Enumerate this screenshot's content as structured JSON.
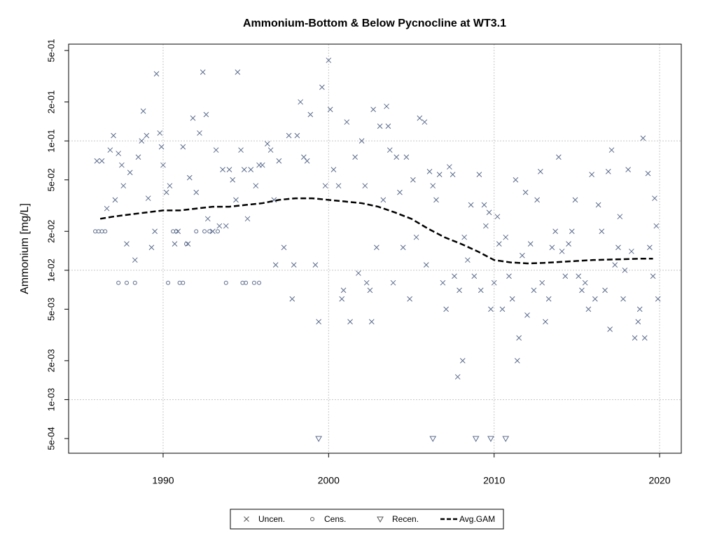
{
  "chart_data": {
    "type": "scatter",
    "title": "Ammonium-Bottom & Below Pycnocline at WT3.1",
    "y_label": "Ammonium [mg/L]",
    "log_y": true,
    "grid": true,
    "xlim": [
      1984.29,
      2021.31
    ],
    "ylim": [
      0.000385,
      0.56
    ],
    "xticks": [
      1990,
      2000,
      2010,
      2020
    ],
    "yticks": [
      {
        "value": 0.5,
        "label": "5e-01"
      },
      {
        "value": 0.2,
        "label": "2e-01"
      },
      {
        "value": 0.1,
        "label": "1e-01"
      },
      {
        "value": 0.05,
        "label": "5e-02"
      },
      {
        "value": 0.02,
        "label": "2e-02"
      },
      {
        "value": 0.01,
        "label": "1e-02"
      },
      {
        "value": 0.005,
        "label": "5e-03"
      },
      {
        "value": 0.002,
        "label": "2e-03"
      },
      {
        "value": 0.001,
        "label": "1e-03"
      },
      {
        "value": 0.0005,
        "label": "5e-04"
      }
    ],
    "legend": "bottom",
    "series": [
      {
        "name": "Uncen.",
        "marker": "x",
        "color": "#5b6b8c",
        "x": [
          1986.0,
          1986.3,
          1986.6,
          1986.8,
          1987.0,
          1987.1,
          1987.3,
          1987.5,
          1987.6,
          1987.8,
          1988.0,
          1988.3,
          1988.5,
          1988.7,
          1988.8,
          1989.0,
          1989.1,
          1989.3,
          1989.5,
          1989.6,
          1989.8,
          1989.9,
          1990.0,
          1990.2,
          1990.4,
          1990.7,
          1990.9,
          1991.2,
          1991.5,
          1991.6,
          1991.8,
          1992.0,
          1992.2,
          1992.4,
          1992.6,
          1992.7,
          1993.0,
          1993.2,
          1993.4,
          1993.6,
          1993.8,
          1994.0,
          1994.2,
          1994.4,
          1994.5,
          1994.7,
          1994.9,
          1995.1,
          1995.3,
          1995.6,
          1995.8,
          1996.0,
          1996.3,
          1996.5,
          1996.7,
          1996.8,
          1997.0,
          1997.3,
          1997.6,
          1997.8,
          1997.9,
          1998.1,
          1998.3,
          1998.5,
          1998.7,
          1998.9,
          1999.2,
          1999.4,
          1999.6,
          1999.8,
          2000.0,
          2000.1,
          2000.3,
          2000.6,
          2000.8,
          2000.9,
          2001.1,
          2001.3,
          2001.6,
          2001.8,
          2002.0,
          2002.2,
          2002.3,
          2002.5,
          2002.6,
          2002.7,
          2002.9,
          2003.1,
          2003.3,
          2003.5,
          2003.6,
          2003.7,
          2003.9,
          2004.1,
          2004.3,
          2004.5,
          2004.7,
          2004.9,
          2005.1,
          2005.3,
          2005.5,
          2005.8,
          2005.9,
          2006.1,
          2006.3,
          2006.5,
          2006.7,
          2006.9,
          2007.1,
          2007.3,
          2007.5,
          2007.6,
          2007.8,
          2007.9,
          2008.1,
          2008.2,
          2008.4,
          2008.6,
          2008.8,
          2009.1,
          2009.2,
          2009.4,
          2009.5,
          2009.7,
          2009.8,
          2010.0,
          2010.2,
          2010.3,
          2010.5,
          2010.7,
          2010.9,
          2011.1,
          2011.3,
          2011.4,
          2011.5,
          2011.7,
          2011.9,
          2012.0,
          2012.2,
          2012.4,
          2012.6,
          2012.8,
          2012.9,
          2013.1,
          2013.3,
          2013.5,
          2013.7,
          2013.9,
          2014.1,
          2014.3,
          2014.5,
          2014.7,
          2014.9,
          2015.1,
          2015.3,
          2015.5,
          2015.7,
          2015.9,
          2016.1,
          2016.3,
          2016.5,
          2016.7,
          2016.9,
          2017.0,
          2017.1,
          2017.3,
          2017.5,
          2017.6,
          2017.8,
          2017.9,
          2018.1,
          2018.3,
          2018.5,
          2018.7,
          2018.8,
          2019.0,
          2019.1,
          2019.3,
          2019.4,
          2019.6,
          2019.7,
          2019.8,
          2019.9
        ],
        "values": [
          0.07,
          0.07,
          0.03,
          0.085,
          0.11,
          0.035,
          0.08,
          0.065,
          0.045,
          0.016,
          0.057,
          0.012,
          0.075,
          0.1,
          0.17,
          0.11,
          0.036,
          0.015,
          0.02,
          0.33,
          0.115,
          0.09,
          0.065,
          0.04,
          0.045,
          0.016,
          0.02,
          0.09,
          0.016,
          0.052,
          0.15,
          0.04,
          0.115,
          0.34,
          0.16,
          0.025,
          0.02,
          0.085,
          0.022,
          0.06,
          0.022,
          0.06,
          0.05,
          0.035,
          0.34,
          0.085,
          0.06,
          0.025,
          0.06,
          0.045,
          0.065,
          0.065,
          0.095,
          0.085,
          0.035,
          0.011,
          0.07,
          0.015,
          0.11,
          0.006,
          0.011,
          0.11,
          0.2,
          0.075,
          0.07,
          0.16,
          0.011,
          0.004,
          0.26,
          0.045,
          0.42,
          0.175,
          0.06,
          0.045,
          0.006,
          0.007,
          0.14,
          0.004,
          0.075,
          0.0095,
          0.1,
          0.045,
          0.008,
          0.007,
          0.004,
          0.175,
          0.015,
          0.13,
          0.035,
          0.185,
          0.13,
          0.085,
          0.008,
          0.075,
          0.04,
          0.015,
          0.075,
          0.006,
          0.05,
          0.018,
          0.15,
          0.14,
          0.011,
          0.058,
          0.045,
          0.035,
          0.055,
          0.008,
          0.005,
          0.063,
          0.055,
          0.009,
          0.0015,
          0.007,
          0.002,
          0.018,
          0.012,
          0.032,
          0.009,
          0.055,
          0.007,
          0.032,
          0.022,
          0.028,
          0.005,
          0.008,
          0.026,
          0.016,
          0.005,
          0.018,
          0.009,
          0.006,
          0.05,
          0.002,
          0.003,
          0.013,
          0.04,
          0.0045,
          0.016,
          0.007,
          0.035,
          0.058,
          0.008,
          0.004,
          0.006,
          0.015,
          0.02,
          0.075,
          0.014,
          0.009,
          0.016,
          0.02,
          0.035,
          0.009,
          0.007,
          0.008,
          0.005,
          0.055,
          0.006,
          0.032,
          0.02,
          0.007,
          0.058,
          0.0035,
          0.085,
          0.011,
          0.015,
          0.026,
          0.006,
          0.01,
          0.06,
          0.014,
          0.003,
          0.004,
          0.005,
          0.105,
          0.003,
          0.056,
          0.015,
          0.009,
          0.036,
          0.022,
          0.006
        ]
      },
      {
        "name": "Cens.",
        "marker": "o",
        "color": "#5b6b8c",
        "x": [
          1985.9,
          1986.1,
          1986.3,
          1986.5,
          1987.3,
          1987.8,
          1988.3,
          1990.3,
          1990.6,
          1990.8,
          1991.0,
          1991.2,
          1991.4,
          1992.0,
          1992.5,
          1992.8,
          1993.3,
          1993.8,
          1994.8,
          1995.0,
          1995.5,
          1995.8
        ],
        "values": [
          0.02,
          0.02,
          0.02,
          0.02,
          0.008,
          0.008,
          0.008,
          0.008,
          0.02,
          0.02,
          0.008,
          0.008,
          0.016,
          0.02,
          0.02,
          0.02,
          0.02,
          0.008,
          0.008,
          0.008,
          0.008,
          0.008
        ]
      },
      {
        "name": "Recen.",
        "marker": "triangle-down",
        "color": "#5b6b8c",
        "x": [
          1999.4,
          2006.3,
          2008.9,
          2009.8,
          2010.7
        ],
        "values": [
          0.0005,
          0.0005,
          0.0005,
          0.0005,
          0.0005
        ]
      },
      {
        "name": "Avg.GAM",
        "marker": "dashed-line",
        "color": "#000000",
        "x": [
          1986.2,
          1987,
          1988,
          1989,
          1990,
          1991,
          1992,
          1993,
          1994,
          1995,
          1996,
          1997,
          1998,
          1999,
          2000,
          2001,
          2002,
          2003,
          2004,
          2005,
          2006,
          2007,
          2008,
          2009,
          2010,
          2011,
          2012,
          2013,
          2014,
          2015,
          2016,
          2017,
          2018,
          2019,
          2019.6
        ],
        "values": [
          0.025,
          0.026,
          0.027,
          0.028,
          0.029,
          0.029,
          0.03,
          0.031,
          0.031,
          0.032,
          0.033,
          0.035,
          0.036,
          0.036,
          0.035,
          0.034,
          0.033,
          0.031,
          0.028,
          0.025,
          0.021,
          0.018,
          0.016,
          0.014,
          0.012,
          0.0115,
          0.0113,
          0.0114,
          0.0116,
          0.0118,
          0.012,
          0.0121,
          0.0122,
          0.0123,
          0.0123
        ]
      }
    ]
  }
}
